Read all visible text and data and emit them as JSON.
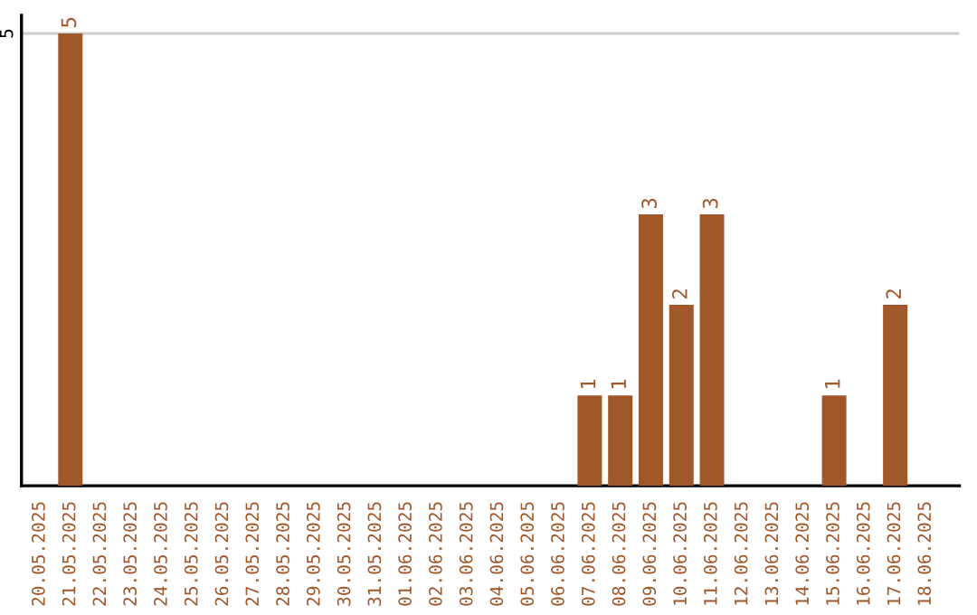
{
  "chart_data": {
    "type": "bar",
    "categories": [
      "20.05.2025",
      "21.05.2025",
      "22.05.2025",
      "23.05.2025",
      "24.05.2025",
      "25.05.2025",
      "26.05.2025",
      "27.05.2025",
      "28.05.2025",
      "29.05.2025",
      "30.05.2025",
      "31.05.2025",
      "01.06.2025",
      "02.06.2025",
      "03.06.2025",
      "04.06.2025",
      "05.06.2025",
      "06.06.2025",
      "07.06.2025",
      "08.06.2025",
      "09.06.2025",
      "10.06.2025",
      "11.06.2025",
      "12.06.2025",
      "13.06.2025",
      "14.06.2025",
      "15.06.2025",
      "16.06.2025",
      "17.06.2025",
      "18.06.2025"
    ],
    "values": [
      0,
      5,
      0,
      0,
      0,
      0,
      0,
      0,
      0,
      0,
      0,
      0,
      0,
      0,
      0,
      0,
      0,
      0,
      1,
      1,
      3,
      2,
      3,
      0,
      0,
      0,
      1,
      0,
      2,
      0
    ],
    "value_labels": [
      null,
      "5",
      null,
      null,
      null,
      null,
      null,
      null,
      null,
      null,
      null,
      null,
      null,
      null,
      null,
      null,
      null,
      null,
      "1",
      "1",
      "3",
      "2",
      "3",
      null,
      null,
      null,
      "1",
      null,
      "2",
      null
    ],
    "color": "#a0572a",
    "ylim": [
      0,
      5.2
    ],
    "yticks": [
      {
        "value": 0,
        "label": null
      },
      5
    ],
    "grid": "y"
  }
}
